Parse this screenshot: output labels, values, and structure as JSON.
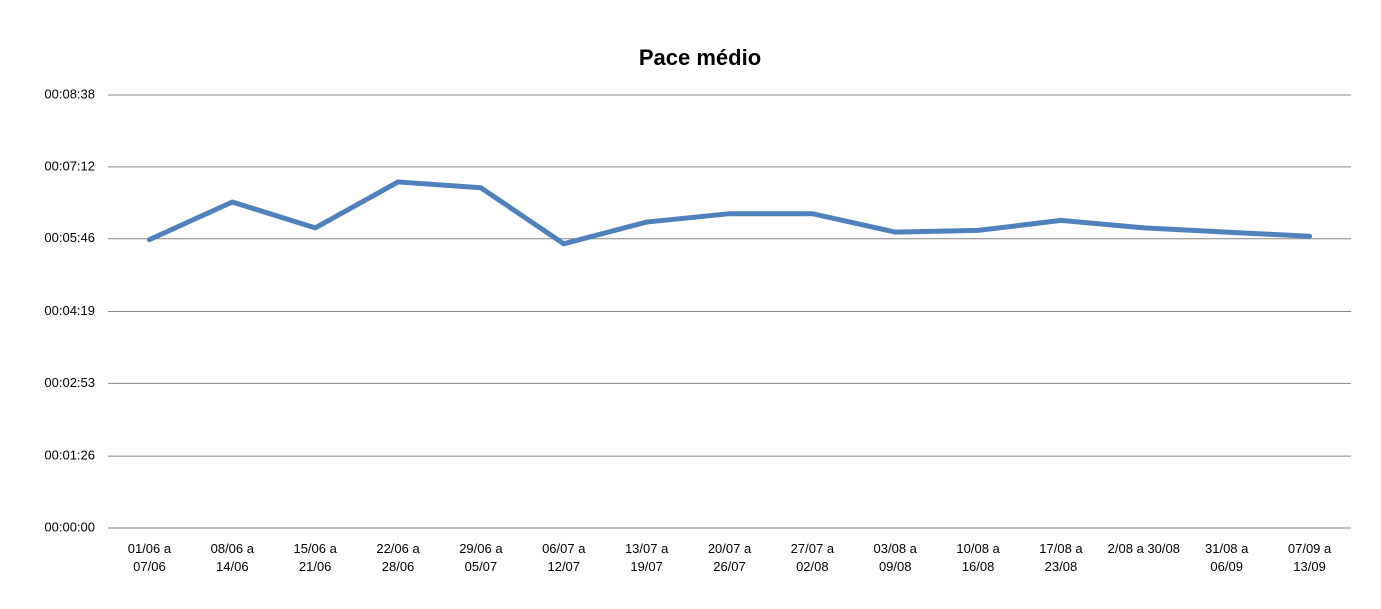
{
  "chart_data": {
    "type": "line",
    "title": "Pace médio",
    "categories": [
      "01/06 a\n07/06",
      "08/06 a\n14/06",
      "15/06 a\n21/06",
      "22/06 a\n28/06",
      "29/06 a\n05/07",
      "06/07 a\n12/07",
      "13/07 a\n19/07",
      "20/07 a\n26/07",
      "27/07 a\n02/08",
      "03/08 a\n09/08",
      "10/08 a\n16/08",
      "17/08 a\n23/08",
      "2/08 a 30/08",
      "31/08 a\n06/09",
      "07/09 a\n13/09"
    ],
    "series": [
      {
        "name": "Pace médio",
        "color": "#4f81bd",
        "values": [
          345,
          390,
          359,
          414,
          407,
          340,
          366,
          376,
          376,
          354,
          356,
          368,
          359,
          354,
          349
        ]
      }
    ],
    "ylim": [
      0,
      518
    ],
    "yticks": [
      {
        "value": 0,
        "label": "00:00:00"
      },
      {
        "value": 86,
        "label": "00:01:26"
      },
      {
        "value": 173,
        "label": "00:02:53"
      },
      {
        "value": 259,
        "label": "00:04:19"
      },
      {
        "value": 346,
        "label": "00:05:46"
      },
      {
        "value": 432,
        "label": "00:07:12"
      },
      {
        "value": 518,
        "label": "00:08:38"
      }
    ],
    "grid": true
  }
}
